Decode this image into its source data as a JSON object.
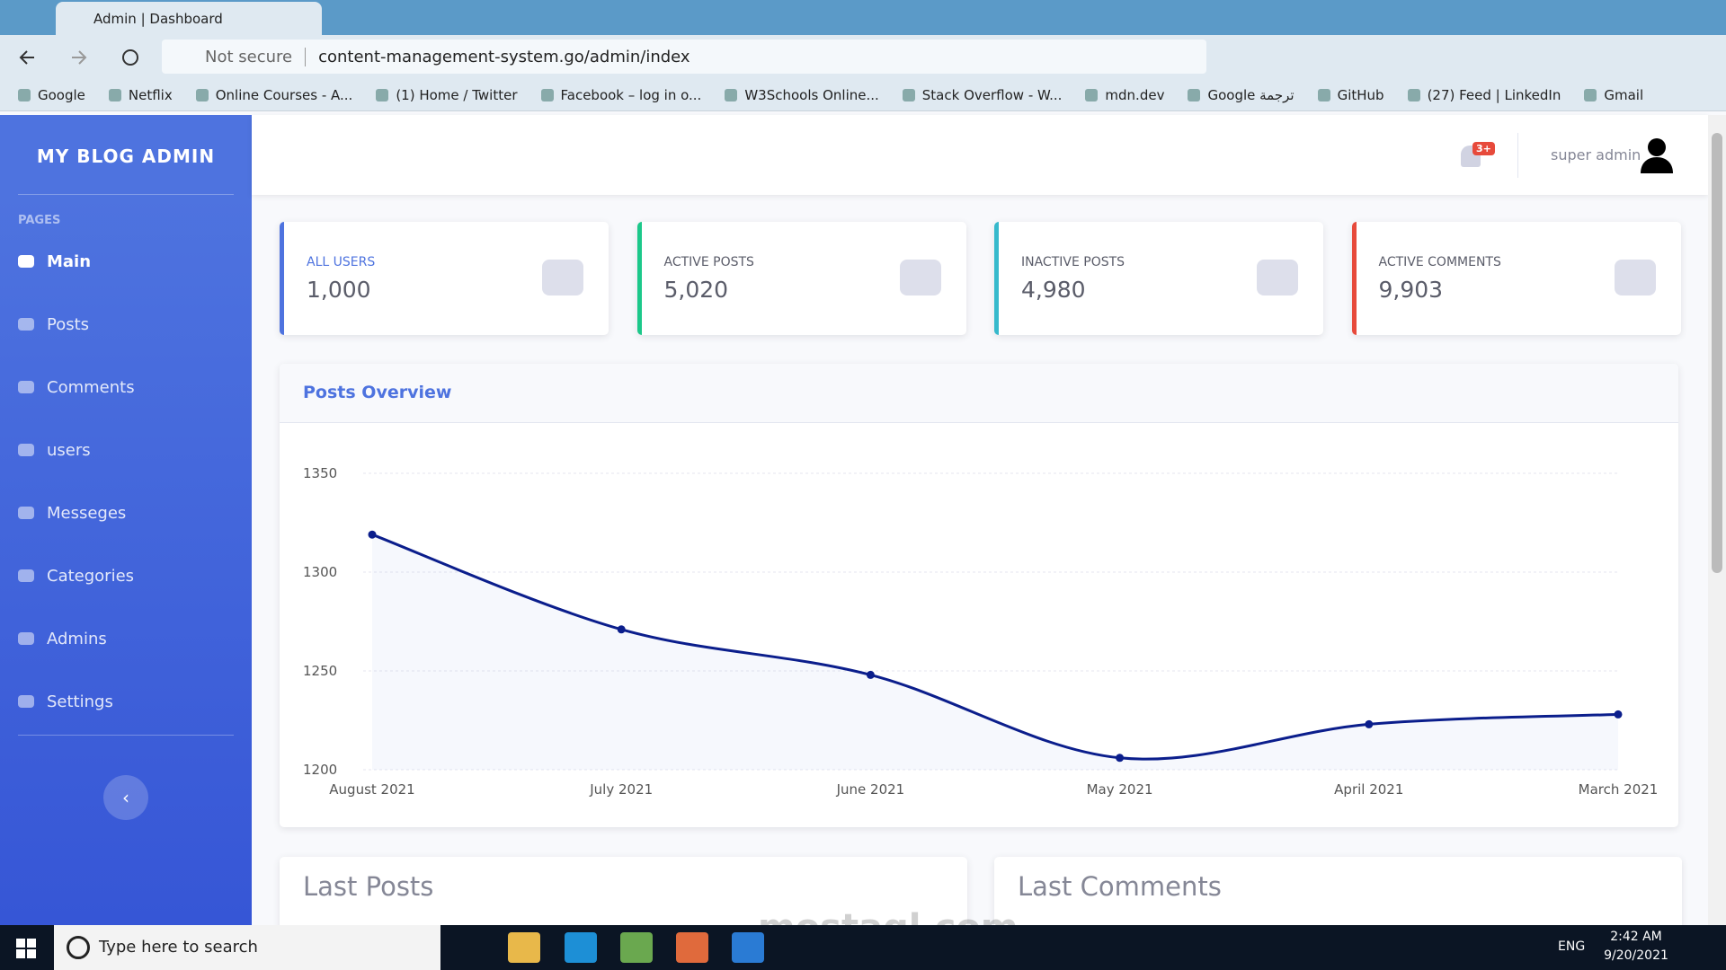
{
  "browser": {
    "tab_title": "Admin | Dashboard",
    "security": "Not secure",
    "url": "content-management-system.go/admin/index",
    "bookmarks": [
      "Google",
      "Netflix",
      "Online Courses - A...",
      "(1) Home / Twitter",
      "Facebook – log in o...",
      "W3Schools Online...",
      "Stack Overflow - W...",
      "mdn.dev",
      "Google ترجمة",
      "GitHub",
      "(27) Feed | LinkedIn",
      "Gmail"
    ]
  },
  "sidebar": {
    "brand": "MY BLOG ADMIN",
    "section": "PAGES",
    "items": [
      "Main",
      "Posts",
      "Comments",
      "users",
      "Messeges",
      "Categories",
      "Admins",
      "Settings"
    ]
  },
  "topbar": {
    "badge": "3+",
    "user": "super admin"
  },
  "cards": [
    {
      "label": "ALL USERS",
      "value": "1,000",
      "color": "#4e73df"
    },
    {
      "label": "ACTIVE POSTS",
      "value": "5,020",
      "color": "#1cc88a"
    },
    {
      "label": "INACTIVE POSTS",
      "value": "4,980",
      "color": "#36b9cc"
    },
    {
      "label": "ACTIVE COMMENTS",
      "value": "9,903",
      "color": "#e74a3b"
    }
  ],
  "chart_data": {
    "type": "line",
    "title": "Posts Overview",
    "categories": [
      "August 2021",
      "July 2021",
      "June 2021",
      "May 2021",
      "April 2021",
      "March 2021"
    ],
    "values": [
      1319,
      1271,
      1248,
      1206,
      1223,
      1228
    ],
    "color": "#0b1e8c",
    "ylim": [
      1200,
      1350
    ],
    "yticks": [
      1200,
      1250,
      1300,
      1350
    ],
    "grid": true
  },
  "panels": [
    "Last Posts",
    "Last Comments"
  ],
  "taskbar": {
    "search": "Type here to search",
    "language": "ENG",
    "time": "2:42 AM",
    "date": "9/20/2021"
  },
  "watermark": "mostaql.com"
}
